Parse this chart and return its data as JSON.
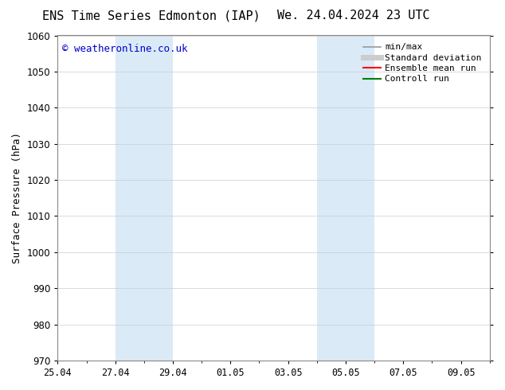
{
  "title_left": "ENS Time Series Edmonton (IAP)",
  "title_right": "We. 24.04.2024 23 UTC",
  "ylabel": "Surface Pressure (hPa)",
  "ylim": [
    970,
    1060
  ],
  "yticks": [
    970,
    980,
    990,
    1000,
    1010,
    1020,
    1030,
    1040,
    1050,
    1060
  ],
  "xlim": [
    0,
    15
  ],
  "xtick_positions": [
    0,
    2,
    4,
    6,
    8,
    10,
    12,
    14
  ],
  "xtick_labels": [
    "25.04",
    "27.04",
    "29.04",
    "01.05",
    "03.05",
    "05.05",
    "07.05",
    "09.05"
  ],
  "shaded_regions": [
    {
      "start_day": 2,
      "end_day": 4,
      "color": "#daeaf6"
    },
    {
      "start_day": 9,
      "end_day": 11,
      "color": "#daeaf6"
    }
  ],
  "watermark_text": "© weatheronline.co.uk",
  "watermark_color": "#0000cc",
  "watermark_fontsize": 9,
  "legend_entries": [
    {
      "label": "min/max",
      "color": "#999999",
      "lw": 1.2,
      "style": "solid"
    },
    {
      "label": "Standard deviation",
      "color": "#cccccc",
      "lw": 5,
      "style": "solid"
    },
    {
      "label": "Ensemble mean run",
      "color": "#ff0000",
      "lw": 1.5,
      "style": "solid"
    },
    {
      "label": "Controll run",
      "color": "#008000",
      "lw": 1.5,
      "style": "solid"
    }
  ],
  "bg_color": "#ffffff",
  "grid_color": "#cccccc",
  "spine_color": "#888888",
  "title_fontsize": 11,
  "axis_label_fontsize": 9,
  "tick_fontsize": 8.5,
  "legend_fontsize": 8
}
